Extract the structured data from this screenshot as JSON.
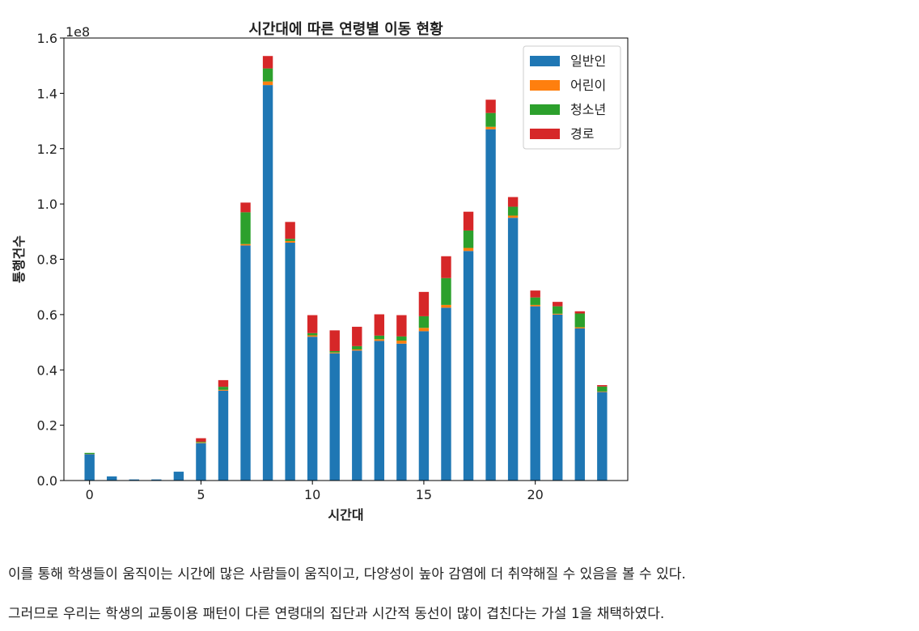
{
  "chart_data": {
    "type": "bar",
    "stacked": true,
    "title": "시간대에 따른 연령별 이동 현황",
    "xlabel": "시간대",
    "ylabel": "통행건수",
    "y_offset_label": "1e8",
    "ylim": [
      0,
      1.6
    ],
    "xlim": [
      -1.15,
      24.15
    ],
    "xticks": [
      0,
      5,
      10,
      15,
      20
    ],
    "yticks": [
      0.0,
      0.2,
      0.4,
      0.6,
      0.8,
      1.0,
      1.2,
      1.4,
      1.6
    ],
    "ytick_labels": [
      "0.0",
      "0.2",
      "0.4",
      "0.6",
      "0.8",
      "1.0",
      "1.2",
      "1.4",
      "1.6"
    ],
    "grid": false,
    "legend_position": "top-right",
    "x": [
      0,
      1,
      2,
      3,
      4,
      5,
      6,
      7,
      8,
      9,
      10,
      11,
      12,
      13,
      14,
      15,
      16,
      17,
      18,
      19,
      20,
      21,
      22,
      23
    ],
    "series": [
      {
        "name": "일반인",
        "color": "#1f77b4",
        "values": [
          0.095,
          0.015,
          0.004,
          0.004,
          0.032,
          0.135,
          0.325,
          0.85,
          1.43,
          0.86,
          0.52,
          0.46,
          0.47,
          0.505,
          0.495,
          0.54,
          0.625,
          0.83,
          1.27,
          0.95,
          0.63,
          0.6,
          0.55,
          0.32
        ]
      },
      {
        "name": "어린이",
        "color": "#ff7f0e",
        "values": [
          0.001,
          0.0,
          0.0,
          0.0,
          0.0,
          0.002,
          0.003,
          0.005,
          0.013,
          0.006,
          0.005,
          0.003,
          0.004,
          0.006,
          0.011,
          0.012,
          0.01,
          0.011,
          0.009,
          0.008,
          0.005,
          0.003,
          0.004,
          0.002
        ]
      },
      {
        "name": "청소년",
        "color": "#2ca02c",
        "values": [
          0.004,
          0.0,
          0.0,
          0.0,
          0.0,
          0.003,
          0.011,
          0.115,
          0.047,
          0.008,
          0.008,
          0.005,
          0.012,
          0.013,
          0.015,
          0.042,
          0.097,
          0.063,
          0.05,
          0.032,
          0.027,
          0.027,
          0.05,
          0.018
        ]
      },
      {
        "name": "경로",
        "color": "#d62728",
        "values": [
          0.0,
          0.0,
          0.0,
          0.0,
          0.0,
          0.013,
          0.024,
          0.035,
          0.045,
          0.061,
          0.065,
          0.075,
          0.07,
          0.077,
          0.077,
          0.088,
          0.079,
          0.068,
          0.048,
          0.035,
          0.025,
          0.016,
          0.008,
          0.005
        ]
      }
    ]
  },
  "text": {
    "paragraph1": "이를 통해 학생들이 움직이는 시간에 많은 사람들이 움직이고, 다양성이 높아 감염에 더 취약해질 수 있음을 볼 수 있다.",
    "paragraph2": "그러므로 우리는 학생의 교통이용 패턴이 다른 연령대의 집단과 시간적 동선이 많이 겹친다는 가설 1을 채택하였다."
  }
}
